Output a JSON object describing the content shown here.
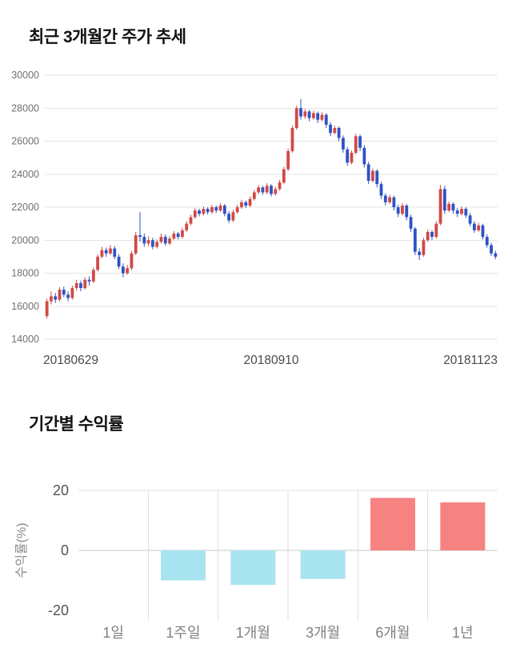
{
  "chart_data": [
    {
      "type": "candlestick",
      "title": "최근 3개월간 주가 추세",
      "ylim": [
        14000,
        30000
      ],
      "y_ticks": [
        30000,
        28000,
        26000,
        24000,
        22000,
        20000,
        18000,
        16000,
        14000
      ],
      "x_tick_labels": [
        "20180629",
        "20180910",
        "20181123"
      ],
      "grid": true,
      "legend": false,
      "colors": {
        "up": "#d04a45",
        "down": "#2f52c4",
        "grid": "#e4e4e4",
        "tick_text": "#707070",
        "x_text": "#4a4a4a"
      },
      "ohlc": [
        [
          15400,
          16450,
          15250,
          16300
        ],
        [
          16300,
          16900,
          16100,
          16600
        ],
        [
          16600,
          16800,
          16200,
          16400
        ],
        [
          16400,
          17150,
          16300,
          17000
        ],
        [
          17000,
          17200,
          16550,
          16700
        ],
        [
          16700,
          16900,
          16300,
          16500
        ],
        [
          16500,
          17250,
          16400,
          17100
        ],
        [
          17100,
          17600,
          16950,
          17400
        ],
        [
          17400,
          17550,
          16900,
          17100
        ],
        [
          17100,
          17750,
          17000,
          17600
        ],
        [
          17600,
          17800,
          17250,
          17500
        ],
        [
          17500,
          18350,
          17400,
          18200
        ],
        [
          18200,
          19150,
          18100,
          19000
        ],
        [
          19000,
          19600,
          18900,
          19400
        ],
        [
          19400,
          19550,
          19000,
          19200
        ],
        [
          19200,
          19700,
          19100,
          19500
        ],
        [
          19500,
          19650,
          18850,
          19000
        ],
        [
          19000,
          19150,
          18250,
          18400
        ],
        [
          18400,
          18600,
          17750,
          18000
        ],
        [
          18000,
          18500,
          17900,
          18300
        ],
        [
          18300,
          19350,
          18200,
          19200
        ],
        [
          19200,
          20500,
          19100,
          20300
        ],
        [
          20300,
          21700,
          19900,
          20200
        ],
        [
          20200,
          20400,
          19600,
          19800
        ],
        [
          19800,
          20250,
          19650,
          20000
        ],
        [
          20000,
          20150,
          19450,
          19600
        ],
        [
          19600,
          20050,
          19500,
          19900
        ],
        [
          19900,
          20400,
          19800,
          20200
        ],
        [
          20200,
          20350,
          19650,
          19800
        ],
        [
          19800,
          20250,
          19700,
          20100
        ],
        [
          20100,
          20550,
          20000,
          20400
        ],
        [
          20400,
          20500,
          20050,
          20200
        ],
        [
          20200,
          20750,
          20100,
          20600
        ],
        [
          20600,
          21150,
          20500,
          21000
        ],
        [
          21000,
          21550,
          20900,
          21400
        ],
        [
          21400,
          21950,
          21300,
          21800
        ],
        [
          21800,
          21900,
          21450,
          21600
        ],
        [
          21600,
          22050,
          21500,
          21900
        ],
        [
          21900,
          22000,
          21550,
          21700
        ],
        [
          21700,
          22150,
          21600,
          22000
        ],
        [
          22000,
          22100,
          21650,
          21800
        ],
        [
          21800,
          22250,
          21700,
          22100
        ],
        [
          22100,
          22200,
          21450,
          21600
        ],
        [
          21600,
          21750,
          21050,
          21200
        ],
        [
          21200,
          21850,
          21100,
          21700
        ],
        [
          21700,
          22150,
          21600,
          22000
        ],
        [
          22000,
          22450,
          21900,
          22300
        ],
        [
          22300,
          22400,
          21950,
          22100
        ],
        [
          22100,
          22650,
          22000,
          22500
        ],
        [
          22500,
          23050,
          22400,
          22900
        ],
        [
          22900,
          23350,
          22800,
          23200
        ],
        [
          23200,
          23300,
          22750,
          22900
        ],
        [
          22900,
          23450,
          22800,
          23300
        ],
        [
          23300,
          23400,
          22650,
          22800
        ],
        [
          22800,
          23250,
          22700,
          23100
        ],
        [
          23100,
          23650,
          23000,
          23500
        ],
        [
          23500,
          24450,
          23400,
          24300
        ],
        [
          24300,
          25550,
          24200,
          25400
        ],
        [
          25400,
          26950,
          25300,
          26800
        ],
        [
          26800,
          28150,
          26700,
          28000
        ],
        [
          28000,
          28550,
          27300,
          27500
        ],
        [
          27500,
          27950,
          27350,
          27800
        ],
        [
          27800,
          27900,
          27200,
          27400
        ],
        [
          27400,
          27850,
          27300,
          27700
        ],
        [
          27700,
          27800,
          27100,
          27300
        ],
        [
          27300,
          27750,
          27200,
          27600
        ],
        [
          27600,
          27700,
          26800,
          27000
        ],
        [
          27000,
          27150,
          26300,
          26500
        ],
        [
          26500,
          26950,
          26400,
          26800
        ],
        [
          26800,
          26900,
          26000,
          26200
        ],
        [
          26200,
          26350,
          25300,
          25500
        ],
        [
          25500,
          25650,
          24500,
          24700
        ],
        [
          24700,
          25450,
          24600,
          25300
        ],
        [
          25300,
          26450,
          25200,
          26300
        ],
        [
          26300,
          26400,
          25400,
          25600
        ],
        [
          25600,
          25750,
          24400,
          24600
        ],
        [
          24600,
          24750,
          23400,
          23600
        ],
        [
          23600,
          24350,
          23500,
          24200
        ],
        [
          24200,
          24300,
          23200,
          23400
        ],
        [
          23400,
          23550,
          22500,
          22700
        ],
        [
          22700,
          22850,
          22100,
          22300
        ],
        [
          22300,
          22750,
          22200,
          22600
        ],
        [
          22600,
          22700,
          21800,
          22000
        ],
        [
          22000,
          22150,
          21400,
          21600
        ],
        [
          21600,
          22250,
          21500,
          22100
        ],
        [
          22100,
          22200,
          21200,
          21400
        ],
        [
          21400,
          21550,
          20500,
          20700
        ],
        [
          20700,
          20800,
          19100,
          19300
        ],
        [
          19300,
          19500,
          18800,
          19100
        ],
        [
          19100,
          20150,
          19000,
          20000
        ],
        [
          20000,
          20650,
          19900,
          20500
        ],
        [
          20500,
          20600,
          20000,
          20200
        ],
        [
          20200,
          21150,
          20100,
          21000
        ],
        [
          21000,
          23350,
          20900,
          23100
        ],
        [
          23100,
          23300,
          21600,
          21800
        ],
        [
          21800,
          22350,
          21700,
          22200
        ],
        [
          22200,
          22300,
          21600,
          21800
        ],
        [
          21800,
          21950,
          21400,
          21600
        ],
        [
          21600,
          22050,
          21500,
          21900
        ],
        [
          21900,
          22000,
          21350,
          21500
        ],
        [
          21500,
          21650,
          20850,
          21000
        ],
        [
          21000,
          21150,
          20450,
          20600
        ],
        [
          20600,
          21050,
          20500,
          20900
        ],
        [
          20900,
          21000,
          20050,
          20200
        ],
        [
          20200,
          20350,
          19550,
          19700
        ],
        [
          19700,
          19850,
          19050,
          19200
        ],
        [
          19200,
          19350,
          18850,
          19000
        ]
      ]
    },
    {
      "type": "bar",
      "title": "기간별 수익률",
      "ylabel": "수익률(%)",
      "categories": [
        "1일",
        "1주일",
        "1개월",
        "3개월",
        "6개월",
        "1년"
      ],
      "values": [
        0,
        -10,
        -11.5,
        -9.5,
        17.5,
        16
      ],
      "y_ticks": [
        20,
        0,
        -20
      ],
      "ylim": [
        -25,
        25
      ],
      "grid": true,
      "legend": false,
      "colors": {
        "positive": "#f68282",
        "negative": "#a8e4f0",
        "zero_line": "#c8c8c8",
        "grid": "#e2e2e2",
        "tick_text": "#555555",
        "category_text": "#808080",
        "ylabel_text": "#8a8a8a"
      }
    }
  ]
}
